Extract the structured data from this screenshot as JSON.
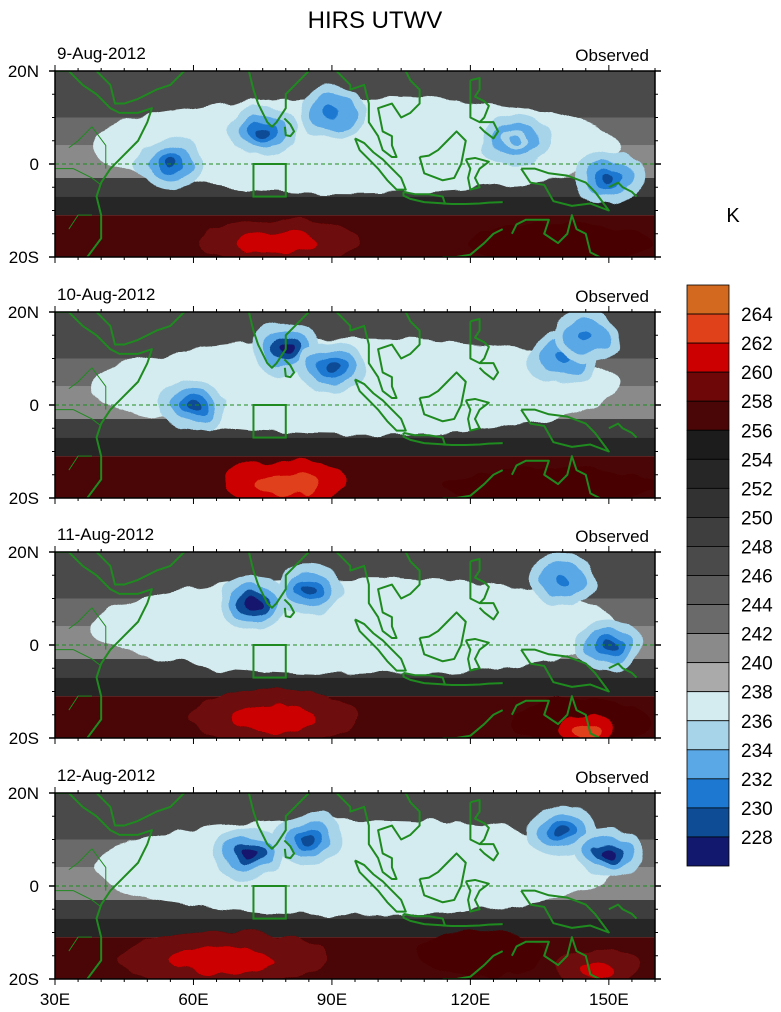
{
  "chart_data": {
    "type": "heatmap",
    "title": "HIRS UTWV",
    "source_label": "Observed",
    "units": "K",
    "x_range": [
      30,
      160
    ],
    "y_range": [
      -20,
      20
    ],
    "x_ticks": [
      {
        "value": 30,
        "label": "30E"
      },
      {
        "value": 60,
        "label": "60E"
      },
      {
        "value": 90,
        "label": "90E"
      },
      {
        "value": 120,
        "label": "120E"
      },
      {
        "value": 150,
        "label": "150E"
      }
    ],
    "y_ticks": [
      {
        "value": 20,
        "label": "20N"
      },
      {
        "value": 0,
        "label": "0"
      },
      {
        "value": -20,
        "label": "20S"
      }
    ],
    "box_region": {
      "lon": [
        73,
        80
      ],
      "lat": [
        -7,
        0
      ]
    },
    "colorbar": {
      "labels": [
        "264",
        "262",
        "260",
        "258",
        "256",
        "254",
        "252",
        "250",
        "248",
        "246",
        "244",
        "242",
        "240",
        "238",
        "236",
        "234",
        "232",
        "230",
        "228"
      ],
      "colors": [
        "#d2691e",
        "#e0401a",
        "#cc0000",
        "#6e0808",
        "#4a0606",
        "#1c1c1c",
        "#262626",
        "#323232",
        "#3e3e3e",
        "#4a4a4a",
        "#5a5a5a",
        "#6a6a6a",
        "#8a8a8a",
        "#aaaaaa",
        "#d4ecf0",
        "#a8d4ea",
        "#5aa8e6",
        "#1c78d0",
        "#0e4c96",
        "#12186e"
      ]
    },
    "panels": [
      {
        "date": "9-Aug-2012",
        "dry_bands": [
          {
            "lon": [
              62,
              95
            ],
            "lat": [
              -20,
              -13
            ],
            "value": 260
          },
          {
            "lon": [
              120,
              158
            ],
            "lat": [
              -20,
              -14
            ],
            "value": 258
          }
        ],
        "moist_cores": [
          {
            "lon": 75,
            "lat": 7,
            "value": 230
          },
          {
            "lon": 90,
            "lat": 11,
            "value": 232
          },
          {
            "lon": 55,
            "lat": 0,
            "value": 230
          },
          {
            "lon": 150,
            "lat": -3,
            "value": 230
          },
          {
            "lon": 130,
            "lat": 5,
            "value": 234
          }
        ]
      },
      {
        "date": "10-Aug-2012",
        "dry_bands": [
          {
            "lon": [
              68,
              92
            ],
            "lat": [
              -20,
              -13
            ],
            "value": 262
          },
          {
            "lon": [
              115,
              160
            ],
            "lat": [
              -20,
              -15
            ],
            "value": 258
          }
        ],
        "moist_cores": [
          {
            "lon": 80,
            "lat": 12,
            "value": 228
          },
          {
            "lon": 90,
            "lat": 8,
            "value": 230
          },
          {
            "lon": 60,
            "lat": 0,
            "value": 230
          },
          {
            "lon": 140,
            "lat": 10,
            "value": 232
          },
          {
            "lon": 145,
            "lat": 15,
            "value": 232
          }
        ]
      },
      {
        "date": "11-Aug-2012",
        "dry_bands": [
          {
            "lon": [
              60,
              95
            ],
            "lat": [
              -20,
              -11
            ],
            "value": 260
          },
          {
            "lon": [
              130,
              158
            ],
            "lat": [
              -20,
              -13
            ],
            "value": 258
          },
          {
            "lon": [
              140,
              150
            ],
            "lat": [
              -20,
              -16
            ],
            "value": 262
          }
        ],
        "moist_cores": [
          {
            "lon": 73,
            "lat": 9,
            "value": 228
          },
          {
            "lon": 85,
            "lat": 12,
            "value": 230
          },
          {
            "lon": 140,
            "lat": 14,
            "value": 232
          },
          {
            "lon": 150,
            "lat": 0,
            "value": 230
          }
        ]
      },
      {
        "date": "12-Aug-2012",
        "dry_bands": [
          {
            "lon": [
              45,
              88
            ],
            "lat": [
              -20,
              -11
            ],
            "value": 260
          },
          {
            "lon": [
              110,
              135
            ],
            "lat": [
              -18,
              -11
            ],
            "value": 258
          },
          {
            "lon": [
              140,
              155
            ],
            "lat": [
              -20,
              -15
            ],
            "value": 260
          }
        ],
        "moist_cores": [
          {
            "lon": 72,
            "lat": 7,
            "value": 228
          },
          {
            "lon": 85,
            "lat": 10,
            "value": 230
          },
          {
            "lon": 140,
            "lat": 12,
            "value": 230
          },
          {
            "lon": 150,
            "lat": 7,
            "value": 228
          }
        ]
      }
    ]
  }
}
